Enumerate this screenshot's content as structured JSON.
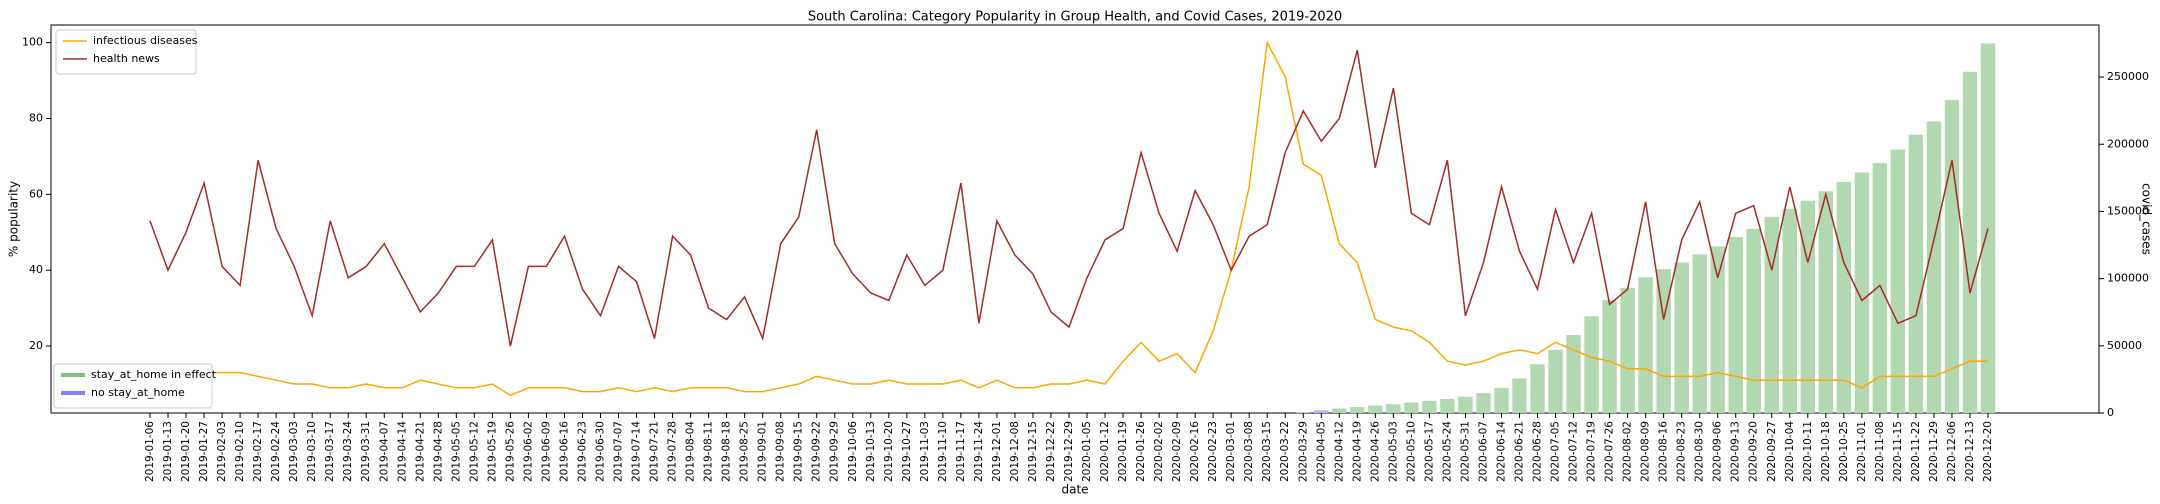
{
  "chart_data": {
    "type": "combo",
    "title": "South Carolina: Category Popularity in Group Health, and Covid Cases, 2019-2020",
    "x_label": "date",
    "y_label": "% popularity",
    "y2_label": "covid_cases",
    "categories": [
      "2019-01-06",
      "2019-01-13",
      "2019-01-20",
      "2019-01-27",
      "2019-02-03",
      "2019-02-10",
      "2019-02-17",
      "2019-02-24",
      "2019-03-03",
      "2019-03-10",
      "2019-03-17",
      "2019-03-24",
      "2019-03-31",
      "2019-04-07",
      "2019-04-14",
      "2019-04-21",
      "2019-04-28",
      "2019-05-05",
      "2019-05-12",
      "2019-05-19",
      "2019-05-26",
      "2019-06-02",
      "2019-06-09",
      "2019-06-16",
      "2019-06-23",
      "2019-06-30",
      "2019-07-07",
      "2019-07-14",
      "2019-07-21",
      "2019-07-28",
      "2019-08-04",
      "2019-08-11",
      "2019-08-18",
      "2019-08-25",
      "2019-09-01",
      "2019-09-08",
      "2019-09-15",
      "2019-09-22",
      "2019-09-29",
      "2019-10-06",
      "2019-10-13",
      "2019-10-20",
      "2019-10-27",
      "2019-11-03",
      "2019-11-10",
      "2019-11-17",
      "2019-11-24",
      "2019-12-01",
      "2019-12-08",
      "2019-12-15",
      "2019-12-22",
      "2019-12-29",
      "2020-01-05",
      "2020-01-12",
      "2020-01-19",
      "2020-01-26",
      "2020-02-02",
      "2020-02-09",
      "2020-02-16",
      "2020-02-23",
      "2020-03-01",
      "2020-03-08",
      "2020-03-15",
      "2020-03-22",
      "2020-03-29",
      "2020-04-05",
      "2020-04-12",
      "2020-04-19",
      "2020-04-26",
      "2020-05-03",
      "2020-05-10",
      "2020-05-17",
      "2020-05-24",
      "2020-05-31",
      "2020-06-07",
      "2020-06-14",
      "2020-06-21",
      "2020-06-28",
      "2020-07-05",
      "2020-07-12",
      "2020-07-19",
      "2020-07-26",
      "2020-08-02",
      "2020-08-09",
      "2020-08-16",
      "2020-08-23",
      "2020-08-30",
      "2020-09-06",
      "2020-09-13",
      "2020-09-20",
      "2020-09-27",
      "2020-10-04",
      "2020-10-11",
      "2020-10-18",
      "2020-10-25",
      "2020-11-01",
      "2020-11-08",
      "2020-11-15",
      "2020-11-22",
      "2020-11-29",
      "2020-12-06",
      "2020-12-13",
      "2020-12-20"
    ],
    "series": [
      {
        "name": "infectious diseases",
        "color": "#ffa500",
        "values": [
          13,
          13,
          13,
          13,
          13,
          13,
          12,
          11,
          10,
          10,
          9,
          9,
          10,
          9,
          9,
          11,
          10,
          9,
          9,
          10,
          7,
          9,
          9,
          9,
          8,
          8,
          9,
          8,
          9,
          8,
          9,
          9,
          9,
          8,
          8,
          9,
          10,
          12,
          11,
          10,
          10,
          11,
          10,
          10,
          10,
          11,
          9,
          11,
          9,
          9,
          10,
          10,
          11,
          10,
          16,
          21,
          16,
          18,
          13,
          24,
          40,
          62,
          100,
          91,
          68,
          65,
          47,
          42,
          27,
          25,
          24,
          21,
          16,
          15,
          16,
          18,
          19,
          18,
          21,
          19,
          17,
          16,
          14,
          14,
          12,
          12,
          12,
          13,
          12,
          11,
          11,
          11,
          11,
          11,
          11,
          9,
          12,
          12,
          12,
          12,
          14,
          16,
          16
        ]
      },
      {
        "name": "health news",
        "color": "#a52a2a",
        "values": [
          53,
          40,
          50,
          63,
          41,
          36,
          69,
          51,
          41,
          28,
          53,
          38,
          41,
          47,
          38,
          29,
          34,
          41,
          41,
          48,
          20,
          41,
          41,
          49,
          35,
          28,
          41,
          37,
          22,
          49,
          44,
          30,
          27,
          33,
          22,
          47,
          54,
          77,
          47,
          39,
          34,
          32,
          44,
          36,
          40,
          63,
          26,
          53,
          44,
          39,
          29,
          25,
          38,
          48,
          51,
          71,
          55,
          45,
          61,
          52,
          40,
          49,
          52,
          71,
          82,
          74,
          80,
          98,
          67,
          88,
          55,
          52,
          69,
          28,
          42,
          62,
          45,
          35,
          56,
          42,
          55,
          31,
          35,
          58,
          27,
          48,
          58,
          38,
          55,
          57,
          40,
          62,
          42,
          60,
          42,
          32,
          36,
          26,
          28,
          48,
          69,
          34,
          51
        ]
      }
    ],
    "bars": {
      "axis": "y2",
      "values": [
        null,
        null,
        null,
        null,
        null,
        null,
        null,
        null,
        null,
        null,
        null,
        null,
        null,
        null,
        null,
        null,
        null,
        null,
        null,
        null,
        null,
        null,
        null,
        null,
        null,
        null,
        null,
        null,
        null,
        null,
        null,
        null,
        null,
        null,
        null,
        null,
        null,
        null,
        null,
        null,
        null,
        null,
        null,
        null,
        null,
        null,
        null,
        null,
        null,
        null,
        null,
        null,
        null,
        null,
        null,
        null,
        null,
        null,
        null,
        null,
        null,
        null,
        null,
        null,
        800,
        2000,
        3300,
        4400,
        5500,
        6600,
        7800,
        9000,
        10400,
        12100,
        14800,
        18700,
        25700,
        36300,
        47000,
        58000,
        72000,
        84000,
        93000,
        101000,
        107000,
        112000,
        118000,
        124000,
        131000,
        137000,
        146000,
        152000,
        158000,
        165000,
        172000,
        179000,
        186000,
        196000,
        207000,
        217000,
        233000,
        254000,
        275000
      ],
      "colors": [
        null,
        null,
        null,
        null,
        null,
        null,
        null,
        null,
        null,
        null,
        null,
        null,
        null,
        null,
        null,
        null,
        null,
        null,
        null,
        null,
        null,
        null,
        null,
        null,
        null,
        null,
        null,
        null,
        null,
        null,
        null,
        null,
        null,
        null,
        null,
        null,
        null,
        null,
        null,
        null,
        null,
        null,
        null,
        null,
        null,
        null,
        null,
        null,
        null,
        null,
        null,
        null,
        null,
        null,
        null,
        null,
        null,
        null,
        null,
        null,
        null,
        null,
        null,
        null,
        "#b2d8b2",
        "#b2b2ff",
        "#b2d8b2",
        "#b2d8b2",
        "#b2d8b2",
        "#b2d8b2",
        "#b2d8b2",
        "#b2d8b2",
        "#b2d8b2",
        "#b2d8b2",
        "#b2d8b2",
        "#b2d8b2",
        "#b2d8b2",
        "#b2d8b2",
        "#b2d8b2",
        "#b2d8b2",
        "#b2d8b2",
        "#b2d8b2",
        "#b2d8b2",
        "#b2d8b2",
        "#b2d8b2",
        "#b2d8b2",
        "#b2d8b2",
        "#b2d8b2",
        "#b2d8b2",
        "#b2d8b2",
        "#b2d8b2",
        "#b2d8b2",
        "#b2d8b2",
        "#b2d8b2",
        "#b2d8b2",
        "#b2d8b2",
        "#b2d8b2",
        "#b2d8b2",
        "#b2d8b2",
        "#b2d8b2",
        "#b2d8b2",
        "#b2d8b2",
        "#b2d8b2"
      ],
      "legend": [
        {
          "name": "stay_at_home in effect",
          "color": "#80c080"
        },
        {
          "name": "no stay_at_home",
          "color": "#8080ff"
        }
      ]
    },
    "ylim": [
      2.35,
      104.65
    ],
    "yticks": [
      20,
      40,
      60,
      80,
      100
    ],
    "y2lim": [
      0,
      288750
    ],
    "y2ticks": [
      0,
      50000,
      100000,
      150000,
      200000,
      250000
    ],
    "legend": "upper left",
    "bar_legend": "lower left"
  }
}
